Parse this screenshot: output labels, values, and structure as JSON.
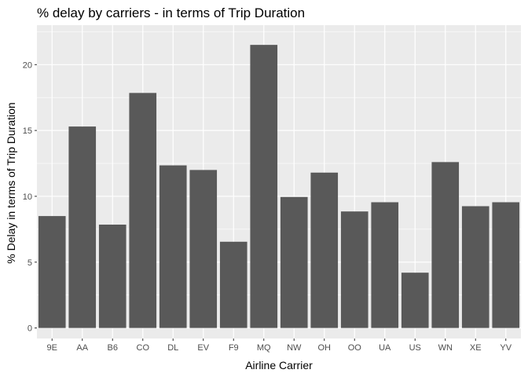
{
  "chart_data": {
    "type": "bar",
    "title": "% delay by carriers - in terms of Trip Duration",
    "xlabel": "Airline Carrier",
    "ylabel": "% Delay in terms of Trip Duration",
    "categories": [
      "9E",
      "AA",
      "B6",
      "CO",
      "DL",
      "EV",
      "F9",
      "MQ",
      "NW",
      "OH",
      "OO",
      "UA",
      "US",
      "WN",
      "XE",
      "YV"
    ],
    "values": [
      8.5,
      15.3,
      7.85,
      17.85,
      12.35,
      12.0,
      6.55,
      21.5,
      9.95,
      11.8,
      8.85,
      9.55,
      4.2,
      12.6,
      9.25,
      9.55
    ],
    "ylim": [
      -0.8,
      23.0
    ],
    "yticks": [
      0,
      5,
      10,
      15,
      20
    ],
    "grid": true,
    "colors": {
      "panel": "#EBEBEB",
      "bar": "#595959",
      "grid": "#FFFFFF"
    }
  }
}
